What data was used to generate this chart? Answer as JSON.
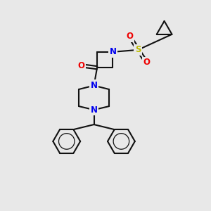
{
  "background_color": "#e8e8e8",
  "atom_colors": {
    "N": "#0000ee",
    "O": "#ee0000",
    "S": "#bbbb00"
  },
  "bond_color": "#111111",
  "bond_width": 1.5,
  "font_size_atom": 8.5
}
